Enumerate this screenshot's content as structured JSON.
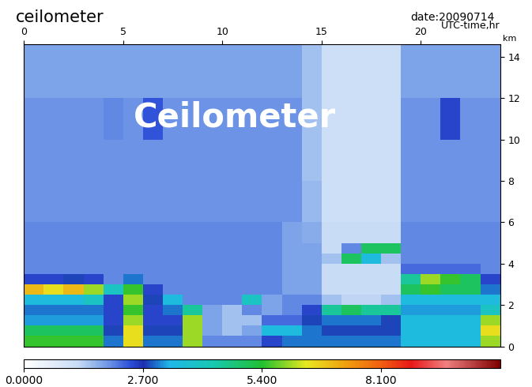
{
  "chart_data": {
    "type": "heatmap",
    "title": "ceilometer",
    "subtitle": "date:20090714",
    "annotation": "Ceilometer",
    "x_label": "UTC-time,hr",
    "y_label": "km",
    "x_edges": [
      0,
      1,
      2,
      3,
      4,
      5,
      6,
      7,
      8,
      9,
      10,
      11,
      12,
      13,
      14,
      15,
      16,
      17,
      18,
      19,
      20,
      21,
      22,
      23,
      24
    ],
    "y_edges": [
      0,
      0.5,
      1,
      1.5,
      2,
      2.5,
      3,
      3.5,
      4,
      4.5,
      5,
      6,
      8,
      10,
      12,
      14,
      14.6
    ],
    "cells": [
      [
        5.5,
        5.5,
        5.5,
        5.5,
        3,
        6.5,
        3,
        3,
        6,
        2,
        2,
        2,
        2.5,
        3,
        3,
        3,
        3,
        3,
        3,
        3.5,
        3.5,
        3.5,
        3.5,
        6
      ],
      [
        5,
        5,
        5,
        5,
        2.8,
        6.5,
        2.8,
        2.8,
        6,
        1.8,
        1.5,
        1.8,
        3.5,
        3.5,
        3,
        2.8,
        2.8,
        2.8,
        2.8,
        3.5,
        3.5,
        3.5,
        3.5,
        6.5
      ],
      [
        3.2,
        3.2,
        3.2,
        3.2,
        2.5,
        6,
        2.5,
        2.5,
        6,
        1.8,
        1.5,
        1.5,
        2.2,
        2.2,
        2.8,
        3,
        3,
        3,
        2.8,
        3.5,
        3.5,
        3.5,
        3.5,
        6
      ],
      [
        3,
        3,
        3,
        3,
        2.5,
        5.5,
        2.5,
        3,
        4.5,
        1.8,
        1.5,
        2,
        1.8,
        2,
        2.5,
        4.5,
        5,
        4.5,
        4.5,
        3.2,
        3.2,
        3.2,
        3.2,
        4
      ],
      [
        3.5,
        3.5,
        3.5,
        4,
        2.5,
        6,
        2.8,
        3.5,
        2,
        2,
        2,
        4,
        1.8,
        2,
        2,
        1.5,
        1.3,
        1.3,
        1.5,
        3.5,
        3.5,
        3.5,
        3.5,
        3.5
      ],
      [
        7,
        6.5,
        7,
        6,
        4,
        5.5,
        2.5,
        2,
        2,
        2,
        2,
        2,
        2,
        1.8,
        1.8,
        1.2,
        1.2,
        1.2,
        1.2,
        5,
        5.5,
        5,
        5,
        3
      ],
      [
        2.5,
        2.5,
        2.8,
        2.5,
        2,
        3,
        2,
        2,
        2,
        2,
        2,
        2,
        2,
        1.8,
        1.8,
        1.2,
        1.2,
        1.2,
        1.2,
        4.5,
        6,
        5.5,
        5,
        2.5
      ],
      [
        2,
        2,
        2,
        2,
        2,
        2,
        2,
        2,
        2,
        2,
        2,
        2,
        2,
        1.8,
        1.8,
        1.2,
        1.2,
        1.2,
        1.2,
        2.2,
        2.2,
        2.2,
        2.2,
        2
      ],
      [
        2,
        2,
        2,
        2,
        2,
        2,
        2,
        2,
        2,
        2,
        2,
        2,
        2,
        1.8,
        1.8,
        1.5,
        5,
        3.5,
        1.5,
        2,
        2,
        2,
        2,
        2
      ],
      [
        2,
        2,
        2,
        2,
        2,
        2,
        2,
        2,
        2,
        2,
        2,
        2,
        2,
        1.8,
        1.8,
        1.2,
        2,
        5,
        5,
        2,
        2,
        2,
        2,
        2
      ],
      [
        2,
        2,
        2,
        2,
        2,
        2,
        2,
        2,
        2,
        2,
        2,
        2,
        2,
        1.8,
        1.7,
        1.2,
        1.2,
        1.2,
        1.2,
        2,
        2,
        2,
        2,
        2
      ],
      [
        1.9,
        1.9,
        1.9,
        1.9,
        1.9,
        1.9,
        1.9,
        1.9,
        1.9,
        1.9,
        1.9,
        1.9,
        1.9,
        1.9,
        1.6,
        1.1,
        1.1,
        1.1,
        1.1,
        1.9,
        1.9,
        1.9,
        1.9,
        1.9
      ],
      [
        1.9,
        1.9,
        1.9,
        1.9,
        1.9,
        1.9,
        1.9,
        1.9,
        1.9,
        1.9,
        1.9,
        1.9,
        1.9,
        1.9,
        1.5,
        1.1,
        1.1,
        1.1,
        1.1,
        1.9,
        1.9,
        1.9,
        1.9,
        1.9
      ],
      [
        1.9,
        1.9,
        1.9,
        1.9,
        2,
        1.9,
        2.4,
        1.9,
        1.9,
        1.9,
        1.9,
        1.9,
        1.9,
        1.9,
        1.5,
        1.1,
        1.1,
        1.1,
        1.1,
        1.9,
        1.9,
        2.5,
        1.9,
        1.9
      ],
      [
        1.8,
        1.8,
        1.8,
        1.8,
        1.8,
        1.8,
        1.8,
        1.8,
        1.8,
        1.8,
        1.8,
        1.8,
        1.8,
        1.8,
        1.5,
        1.1,
        1.1,
        1.1,
        1.1,
        1.8,
        1.8,
        1.8,
        1.8,
        1.8
      ],
      [
        1.8,
        1.8,
        1.8,
        1.8,
        1.8,
        1.8,
        1.8,
        1.8,
        1.8,
        1.8,
        1.8,
        1.8,
        1.8,
        1.8,
        1.5,
        1.1,
        1.1,
        1.1,
        1.1,
        1.8,
        1.8,
        1.8,
        1.8,
        1.8
      ]
    ],
    "xlim": [
      0,
      24
    ],
    "xticks": [
      0,
      5,
      10,
      15,
      20
    ],
    "ylim": [
      0,
      14.6
    ],
    "yticks": [
      0,
      2,
      4,
      6,
      8,
      10,
      12,
      14
    ],
    "colorbar_range": [
      0,
      10.8
    ],
    "colorbar_ticks": [
      {
        "value": 0,
        "label": "0.0000"
      },
      {
        "value": 2.7,
        "label": "2.700"
      },
      {
        "value": 5.4,
        "label": "5.400"
      },
      {
        "value": 8.1,
        "label": "8.100"
      }
    ]
  }
}
